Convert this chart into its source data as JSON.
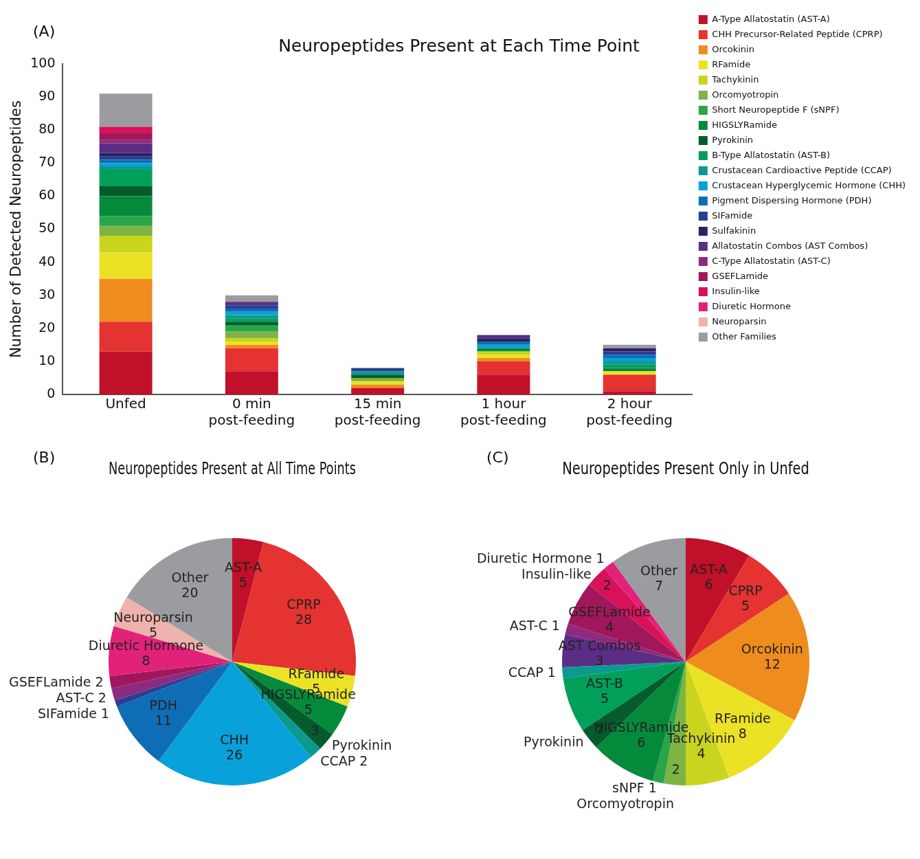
{
  "chart_data": [
    {
      "type": "bar",
      "title": "Neuropeptides Present at Each Time Point",
      "annotations": [
        "(A)"
      ],
      "ylabel": "Number of Detected Neuropeptides",
      "categories": [
        "Unfed",
        "0 min post-feeding",
        "15 min post-feeding",
        "1 hour post-feeding",
        "2 hour post-feeding"
      ],
      "stacked": true,
      "ylim": [
        0,
        100
      ],
      "yticks": [
        0,
        10,
        20,
        30,
        40,
        50,
        60,
        70,
        80,
        90,
        100
      ],
      "grid": false,
      "legend": "right",
      "series": [
        {
          "name": "A-Type Allatostatin (AST-A)",
          "color": "#c0102a",
          "values": [
            13,
            7,
            2,
            6,
            1
          ]
        },
        {
          "name": "CHH Precursor-Related Peptide (CPRP)",
          "color": "#e43331",
          "values": [
            9,
            7,
            0,
            4,
            5
          ]
        },
        {
          "name": "Orcokinin",
          "color": "#ef8c1e",
          "values": [
            13,
            1,
            1,
            1,
            0
          ]
        },
        {
          "name": "RFamide",
          "color": "#ebe226",
          "values": [
            8,
            1,
            1,
            1,
            1
          ]
        },
        {
          "name": "Tachykinin",
          "color": "#c9d41f",
          "values": [
            5,
            1,
            0,
            1,
            0
          ]
        },
        {
          "name": "Orcomyotropin",
          "color": "#7db443",
          "values": [
            3,
            2,
            1,
            0,
            0
          ]
        },
        {
          "name": "Short Neuropeptide F (sNPF)",
          "color": "#2aa54a",
          "values": [
            3,
            2,
            0,
            0,
            0
          ]
        },
        {
          "name": "HIGSLYRamide",
          "color": "#058a3c",
          "values": [
            6,
            0,
            0,
            1,
            1
          ]
        },
        {
          "name": "Pyrokinin",
          "color": "#045c2d",
          "values": [
            3,
            1,
            1,
            0,
            0
          ]
        },
        {
          "name": "B-Type Allatostatin (AST-B)",
          "color": "#01a05a",
          "values": [
            5,
            1,
            0,
            0,
            1
          ]
        },
        {
          "name": "Crustacean Cardioactive Peptide (CCAP)",
          "color": "#0b9a8f",
          "values": [
            1,
            1,
            1,
            0,
            1
          ]
        },
        {
          "name": "Crustacean Hyperglycemic Hormone (CHH)",
          "color": "#08a1d9",
          "values": [
            1,
            1,
            0,
            1,
            1
          ]
        },
        {
          "name": "Pigment Dispersing Hormone (PDH)",
          "color": "#0f6db5",
          "values": [
            1,
            1,
            0,
            1,
            1
          ]
        },
        {
          "name": "SIFamide",
          "color": "#283f93",
          "values": [
            1,
            1,
            1,
            0,
            1
          ]
        },
        {
          "name": "Sulfakinin",
          "color": "#2a2262",
          "values": [
            1,
            0,
            0,
            1,
            1
          ]
        },
        {
          "name": "Allatostatin Combos (AST Combos)",
          "color": "#5b2d84",
          "values": [
            3,
            1,
            0,
            1,
            0
          ]
        },
        {
          "name": "C-Type Allatostatin (AST-C)",
          "color": "#8e2a7f",
          "values": [
            1,
            0,
            0,
            0,
            0
          ]
        },
        {
          "name": "GSEFLamide",
          "color": "#a0185b",
          "values": [
            2,
            0,
            0,
            0,
            0
          ]
        },
        {
          "name": "Insulin-like",
          "color": "#d81159",
          "values": [
            2,
            0,
            0,
            0,
            0
          ]
        },
        {
          "name": "Diuretic Hormone",
          "color": "#e2227a",
          "values": [
            0,
            0,
            0,
            0,
            0
          ]
        },
        {
          "name": "Neuroparsin",
          "color": "#efb2ac",
          "values": [
            0,
            0,
            0,
            0,
            0
          ]
        },
        {
          "name": "Other Families",
          "color": "#9b9c9f",
          "values": [
            10,
            2,
            0,
            0,
            1
          ]
        }
      ]
    },
    {
      "type": "pie",
      "title": "Neuropeptides Present at All Time Points",
      "annotations": [
        "(B)"
      ],
      "data_labels": true,
      "legend": false,
      "categories": [
        "AST-A",
        "CPRP",
        "RFamide",
        "HIGSLYRamide",
        "Pyrokinin",
        "CCAP",
        "CHH",
        "PDH",
        "SIFamide",
        "AST-C",
        "GSEFLamide",
        "Diuretic Hormone",
        "Neuroparsin",
        "Other"
      ],
      "values": [
        5,
        28,
        5,
        5,
        3,
        2,
        26,
        11,
        1,
        2,
        2,
        8,
        5,
        20
      ],
      "colors": [
        "#c0102a",
        "#e43331",
        "#ebe226",
        "#058a3c",
        "#045c2d",
        "#0b9a8f",
        "#08a1d9",
        "#0f6db5",
        "#283f93",
        "#8e2a7f",
        "#a0185b",
        "#e2227a",
        "#efb2ac",
        "#9b9c9f"
      ]
    },
    {
      "type": "pie",
      "title": "Neuropeptides Present Only in Unfed",
      "annotations": [
        "(C)"
      ],
      "data_labels": true,
      "legend": false,
      "categories": [
        "AST-A",
        "CPRP",
        "Orcokinin",
        "RFamide",
        "Tachykinin",
        "Orcomyotropin",
        "sNPF",
        "HIGSLYRamide",
        "Pyrokinin",
        "AST-B",
        "CCAP",
        "AST Combos",
        "AST-C",
        "GSEFLamide",
        "Insulin-like",
        "Diuretic Hormone",
        "Other"
      ],
      "values": [
        6,
        5,
        12,
        8,
        4,
        2,
        1,
        6,
        2,
        5,
        1,
        3,
        1,
        4,
        2,
        1,
        7
      ],
      "colors": [
        "#c0102a",
        "#e43331",
        "#ef8c1e",
        "#ebe226",
        "#c9d41f",
        "#7db443",
        "#2aa54a",
        "#058a3c",
        "#045c2d",
        "#01a05a",
        "#0b9a8f",
        "#5b2d84",
        "#8e2a7f",
        "#a0185b",
        "#d81159",
        "#e2227a",
        "#9b9c9f"
      ]
    }
  ]
}
